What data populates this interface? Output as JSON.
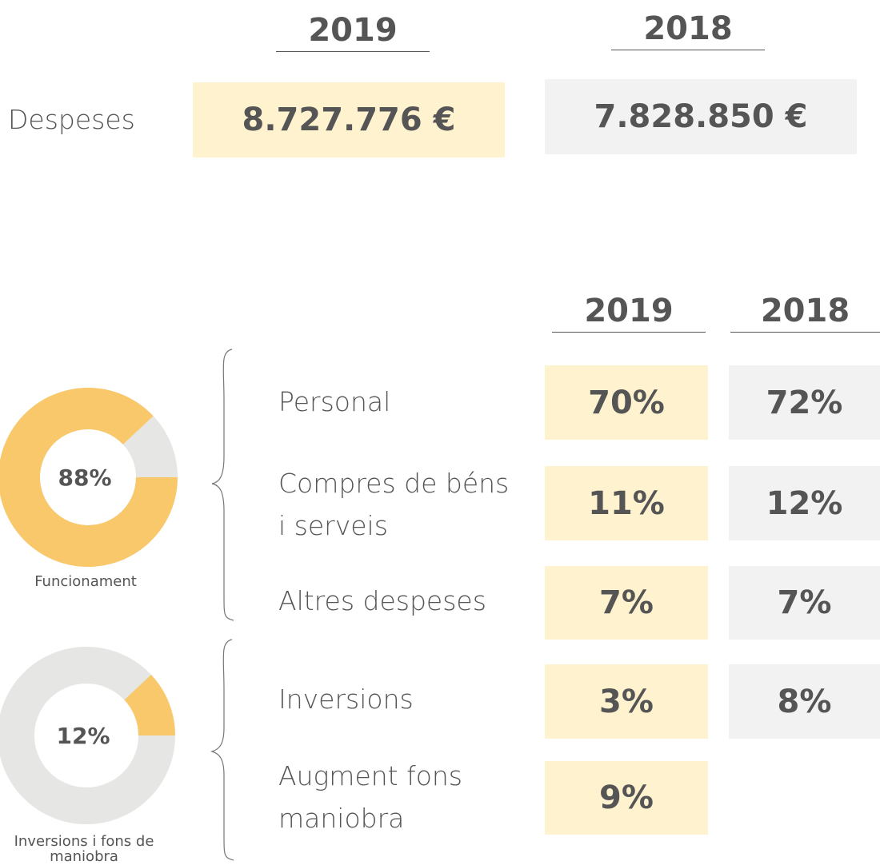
{
  "summary": {
    "years": [
      "2019",
      "2018"
    ],
    "label": "Despeses",
    "values": [
      "8.727.776 €",
      "7.828.850 €"
    ]
  },
  "breakdown": {
    "years": [
      "2019",
      "2018"
    ],
    "rows": [
      {
        "label": "Personal",
        "values": [
          "70%",
          "72%"
        ]
      },
      {
        "label": "Compres de béns i serveis",
        "values": [
          "11%",
          "12%"
        ]
      },
      {
        "label": "Altres despeses",
        "values": [
          "7%",
          "7%"
        ]
      },
      {
        "label": "Inversions",
        "values": [
          "3%",
          "8%"
        ]
      },
      {
        "label": "Augment fons maniobra",
        "values": [
          "9%"
        ]
      }
    ]
  },
  "donuts": [
    {
      "values": [
        88
      ],
      "value_labels": [
        "88%"
      ],
      "caption": "Funcionament"
    },
    {
      "values": [
        12
      ],
      "value_labels": [
        "12%"
      ],
      "caption": "Inversions i fons de maniobra"
    }
  ]
}
